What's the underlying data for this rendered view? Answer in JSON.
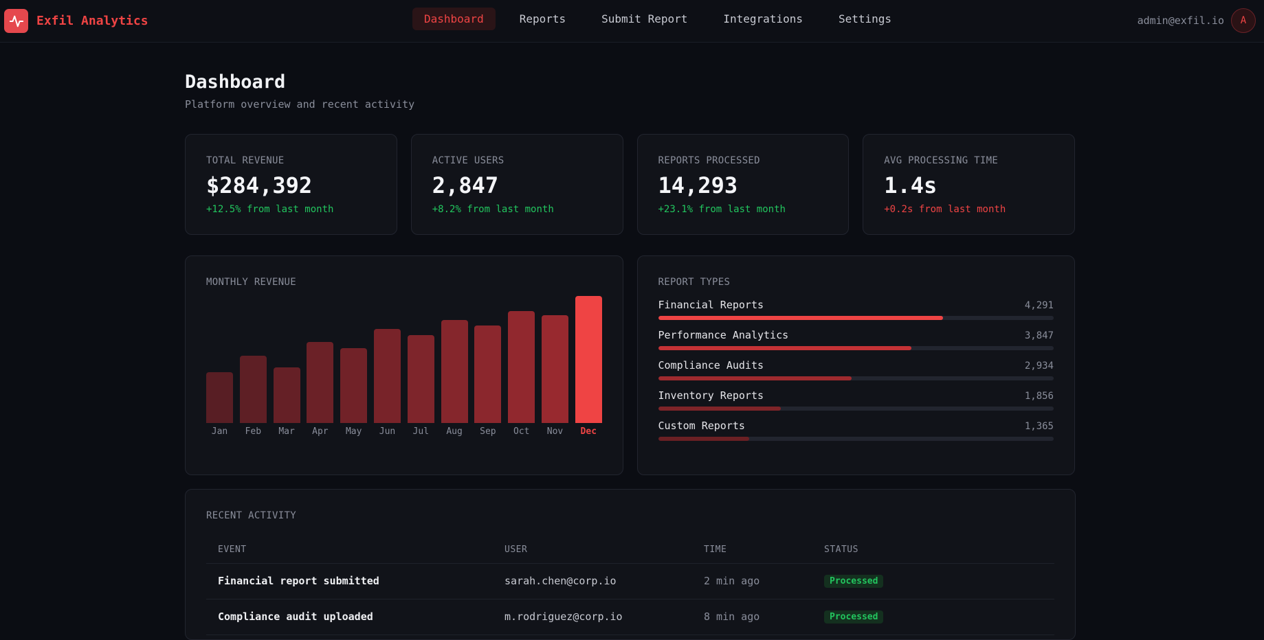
{
  "app": {
    "brand": "Exfil Analytics",
    "user_email": "admin@exfil.io",
    "avatar_initial": "A",
    "accent": "#ef4444"
  },
  "nav": {
    "items": [
      "Dashboard",
      "Reports",
      "Submit Report",
      "Integrations",
      "Settings"
    ],
    "active": "Dashboard"
  },
  "page": {
    "title": "Dashboard",
    "subtitle": "Platform overview and recent activity"
  },
  "stats": [
    {
      "label": "TOTAL REVENUE",
      "value": "$284,392",
      "change": "+12.5% from last month",
      "trend": "up"
    },
    {
      "label": "ACTIVE USERS",
      "value": "2,847",
      "change": "+8.2% from last month",
      "trend": "up"
    },
    {
      "label": "REPORTS PROCESSED",
      "value": "14,293",
      "change": "+23.1% from last month",
      "trend": "up"
    },
    {
      "label": "AVG PROCESSING TIME",
      "value": "1.4s",
      "change": "+0.2s from last month",
      "trend": "down"
    }
  ],
  "revenue": {
    "title": "MONTHLY REVENUE"
  },
  "chart_data": {
    "type": "bar",
    "title": "MONTHLY REVENUE",
    "categories": [
      "Jan",
      "Feb",
      "Mar",
      "Apr",
      "May",
      "Jun",
      "Jul",
      "Aug",
      "Sep",
      "Oct",
      "Nov",
      "Dec"
    ],
    "values": [
      40,
      53,
      44,
      64,
      59,
      74,
      69,
      81,
      77,
      88,
      85,
      100
    ],
    "highlight": "Dec",
    "ylim": [
      0,
      100
    ]
  },
  "report_types": {
    "title": "REPORT TYPES",
    "items": [
      {
        "name": "Financial Reports",
        "count": "4,291",
        "fraction": 0.72,
        "color": "#ef4444"
      },
      {
        "name": "Performance Analytics",
        "count": "3,847",
        "fraction": 0.64,
        "color": "#c53236"
      },
      {
        "name": "Compliance Audits",
        "count": "2,934",
        "fraction": 0.49,
        "color": "#9e2a2e"
      },
      {
        "name": "Inventory Reports",
        "count": "1,856",
        "fraction": 0.31,
        "color": "#7e2428"
      },
      {
        "name": "Custom Reports",
        "count": "1,365",
        "fraction": 0.23,
        "color": "#6a2024"
      }
    ]
  },
  "activity": {
    "title": "RECENT ACTIVITY",
    "columns": [
      "EVENT",
      "USER",
      "TIME",
      "STATUS"
    ],
    "rows": [
      {
        "event": "Financial report submitted",
        "user": "sarah.chen@corp.io",
        "time": "2 min ago",
        "status": "Processed"
      },
      {
        "event": "Compliance audit uploaded",
        "user": "m.rodriguez@corp.io",
        "time": "8 min ago",
        "status": "Processed"
      }
    ]
  }
}
